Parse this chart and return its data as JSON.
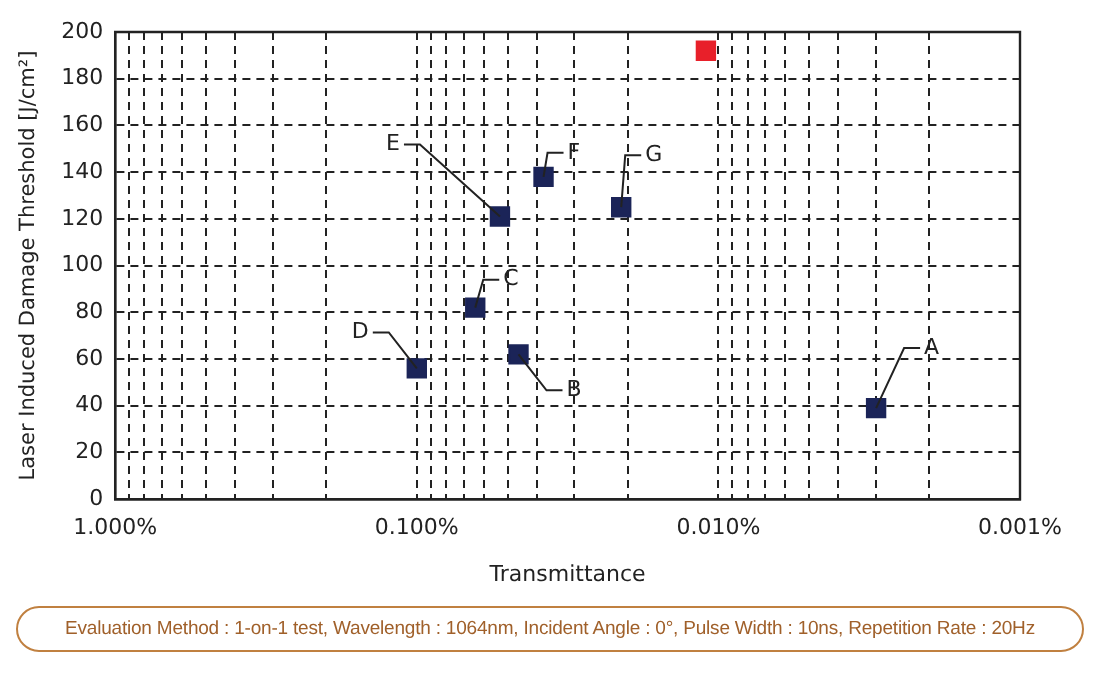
{
  "chart_data": {
    "type": "scatter",
    "xlabel": "Transmittance",
    "ylabel": "Laser Induced Damage Threshold [J/cm²]",
    "log": "x",
    "grid": true,
    "legend": false,
    "marker": "square",
    "xlim": [
      1,
      0.001
    ],
    "xticks": [
      {
        "value": 1,
        "label": "1.000%"
      },
      {
        "value": 0.9,
        "label": null
      },
      {
        "value": 0.8,
        "label": null
      },
      {
        "value": 0.7,
        "label": null
      },
      {
        "value": 0.6,
        "label": null
      },
      {
        "value": 0.5,
        "label": null
      },
      {
        "value": 0.4,
        "label": null
      },
      {
        "value": 0.3,
        "label": null
      },
      {
        "value": 0.2,
        "label": null
      },
      {
        "value": 0.1,
        "label": "0.100%"
      },
      {
        "value": 0.09,
        "label": null
      },
      {
        "value": 0.08,
        "label": null
      },
      {
        "value": 0.07,
        "label": null
      },
      {
        "value": 0.06,
        "label": null
      },
      {
        "value": 0.05,
        "label": null
      },
      {
        "value": 0.04,
        "label": null
      },
      {
        "value": 0.03,
        "label": null
      },
      {
        "value": 0.02,
        "label": null
      },
      {
        "value": 0.01,
        "label": "0.010%"
      },
      {
        "value": 0.009,
        "label": null
      },
      {
        "value": 0.008,
        "label": null
      },
      {
        "value": 0.007,
        "label": null
      },
      {
        "value": 0.006,
        "label": null
      },
      {
        "value": 0.005,
        "label": null
      },
      {
        "value": 0.004,
        "label": null
      },
      {
        "value": 0.003,
        "label": null
      },
      {
        "value": 0.002,
        "label": null
      },
      {
        "value": 0.001,
        "label": "0.001%"
      }
    ],
    "ylim": [
      0,
      200
    ],
    "yticks": [
      0,
      20,
      40,
      60,
      80,
      100,
      120,
      140,
      160,
      180,
      200
    ],
    "series": [
      {
        "name": "A",
        "color": "#1b2458",
        "x": [
          0.003
        ],
        "values": [
          39
        ]
      },
      {
        "name": "B",
        "color": "#1b2458",
        "x": [
          0.046
        ],
        "values": [
          62
        ]
      },
      {
        "name": "C",
        "color": "#1b2458",
        "x": [
          0.064
        ],
        "values": [
          82
        ]
      },
      {
        "name": "D",
        "color": "#1b2458",
        "x": [
          0.1
        ],
        "values": [
          56
        ]
      },
      {
        "name": "E",
        "color": "#1b2458",
        "x": [
          0.053
        ],
        "values": [
          121
        ]
      },
      {
        "name": "F",
        "color": "#1b2458",
        "x": [
          0.038
        ],
        "values": [
          138
        ]
      },
      {
        "name": "G",
        "color": "#1b2458",
        "x": [
          0.021
        ],
        "values": [
          125
        ]
      },
      {
        "color": "#e8202a",
        "x": [
          0.011
        ],
        "values": [
          192
        ]
      }
    ],
    "annotations": [
      "Evaluation Method : 1-on-1 test, Wavelength : 1064nm, Incident Angle : 0°, Pulse Width : 10ns, Repetition Rate : 20Hz"
    ]
  }
}
